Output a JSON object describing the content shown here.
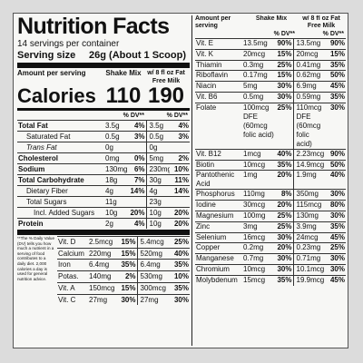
{
  "title": "Nutrition Facts",
  "servings_per_container": "14 servings per container",
  "serving_size": {
    "label": "Serving size",
    "value": "26g (About 1 Scoop)"
  },
  "calories": {
    "amount_per_serving": "Amount per serving",
    "label": "Calories",
    "col1_header": "Shake Mix",
    "col2_header": "w/ 8 fl oz Fat Free Milk",
    "col1_value": "110",
    "col2_value": "190"
  },
  "dv_header": "% DV**",
  "macros": [
    {
      "name": "Total Fat",
      "bold": true,
      "indent": 0,
      "a1": "3.5g",
      "p1": "4%",
      "a2": "3.5g",
      "p2": "4%"
    },
    {
      "name": "Saturated Fat",
      "bold": false,
      "indent": 1,
      "a1": "0.5g",
      "p1": "3%",
      "a2": "0.5g",
      "p2": "3%"
    },
    {
      "name": "Trans Fat",
      "bold": false,
      "italic": true,
      "indent": 1,
      "a1": "0g",
      "p1": "",
      "a2": "0g",
      "p2": ""
    },
    {
      "name": "Cholesterol",
      "bold": true,
      "indent": 0,
      "a1": "0mg",
      "p1": "0%",
      "a2": "5mg",
      "p2": "2%"
    },
    {
      "name": "Sodium",
      "bold": true,
      "indent": 0,
      "a1": "130mg",
      "p1": "6%",
      "a2": "230mg",
      "p2": "10%"
    },
    {
      "name": "Total Carbohydrate",
      "bold": true,
      "indent": 0,
      "a1": "18g",
      "p1": "7%",
      "a2": "30g",
      "p2": "11%"
    },
    {
      "name": "Dietary Fiber",
      "bold": false,
      "indent": 1,
      "a1": "4g",
      "p1": "14%",
      "a2": "4g",
      "p2": "14%"
    },
    {
      "name": "Total Sugars",
      "bold": false,
      "indent": 1,
      "a1": "11g",
      "p1": "",
      "a2": "23g",
      "p2": ""
    },
    {
      "name": "Incl. Added Sugars",
      "bold": false,
      "indent": 2,
      "a1": "10g",
      "p1": "20%",
      "a2": "10g",
      "p2": "20%"
    },
    {
      "name": "Protein",
      "bold": true,
      "indent": 0,
      "a1": "2g",
      "p1": "4%",
      "a2": "10g",
      "p2": "20%"
    }
  ],
  "footnote": "**The % Daily Value (DV) tells you how much a nutrient in a serving of food contributes to a daily diet. 2,000 calories a day is used for general nutrition advice.",
  "vitamins_left": [
    {
      "name": "Vit. D",
      "a1": "2.5mcg",
      "p1": "15%",
      "a2": "5.4mcg",
      "p2": "25%"
    },
    {
      "name": "Calcium",
      "a1": "220mg",
      "p1": "15%",
      "a2": "520mg",
      "p2": "40%"
    },
    {
      "name": "Iron",
      "a1": "6.4mg",
      "p1": "35%",
      "a2": "6.4mg",
      "p2": "35%"
    },
    {
      "name": "Potas.",
      "a1": "140mg",
      "p1": "2%",
      "a2": "530mg",
      "p2": "10%"
    },
    {
      "name": "Vit. A",
      "a1": "150mcg",
      "p1": "15%",
      "a2": "300mcg",
      "p2": "35%"
    },
    {
      "name": "Vit. C",
      "a1": "27mg",
      "p1": "30%",
      "a2": "27mg",
      "p2": "30%"
    }
  ],
  "right": {
    "amount_per_serving": "Amount per serving",
    "col1_header": "Shake Mix",
    "col2_header": "w/ 8 fl oz Fat Free Milk",
    "rows": [
      {
        "name": "Vit. E",
        "a1": "13.5mg",
        "p1": "90%",
        "a2": "13.5mg",
        "p2": "90%"
      },
      {
        "name": "Vit. K",
        "a1": "20mcg",
        "p1": "15%",
        "a2": "20mcg",
        "p2": "15%"
      },
      {
        "name": "Thiamin",
        "a1": "0.3mg",
        "p1": "25%",
        "a2": "0.41mg",
        "p2": "35%"
      },
      {
        "name": "Riboflavin",
        "a1": "0.17mg",
        "p1": "15%",
        "a2": "0.62mg",
        "p2": "50%"
      },
      {
        "name": "Niacin",
        "a1": "5mg",
        "p1": "30%",
        "a2": "6.9mg",
        "p2": "45%"
      },
      {
        "name": "Vit. B6",
        "a1": "0.5mg",
        "p1": "30%",
        "a2": "0.59mg",
        "p2": "35%"
      },
      {
        "name": "Folate",
        "a1": "100mcg DFE (60mcg folic acid)",
        "p1": "25%",
        "a2": "110mcg DFE (60mcg folic acid)",
        "p2": "30%",
        "tall": true
      },
      {
        "name": "Vit. B12",
        "a1": "1mcg",
        "p1": "40%",
        "a2": "2.23mcg",
        "p2": "90%"
      },
      {
        "name": "Biotin",
        "a1": "10mcg",
        "p1": "35%",
        "a2": "14.9mcg",
        "p2": "50%"
      },
      {
        "name": "Pantothenic Acid",
        "a1": "1mg",
        "p1": "20%",
        "a2": "1.9mg",
        "p2": "40%",
        "tall2": true
      },
      {
        "name": "Phosphorus",
        "a1": "110mg",
        "p1": "8%",
        "a2": "350mg",
        "p2": "30%"
      },
      {
        "name": "Iodine",
        "a1": "30mcg",
        "p1": "20%",
        "a2": "115mcg",
        "p2": "80%"
      },
      {
        "name": "Magnesium",
        "a1": "100mg",
        "p1": "25%",
        "a2": "130mg",
        "p2": "30%"
      },
      {
        "name": "Zinc",
        "a1": "3mg",
        "p1": "25%",
        "a2": "3.9mg",
        "p2": "35%"
      },
      {
        "name": "Selenium",
        "a1": "16mcg",
        "p1": "30%",
        "a2": "24mcg",
        "p2": "45%"
      },
      {
        "name": "Copper",
        "a1": "0.2mg",
        "p1": "20%",
        "a2": "0.23mg",
        "p2": "25%"
      },
      {
        "name": "Manganese",
        "a1": "0.7mg",
        "p1": "30%",
        "a2": "0.71mg",
        "p2": "30%"
      },
      {
        "name": "Chromium",
        "a1": "10mcg",
        "p1": "30%",
        "a2": "10.1mcg",
        "p2": "30%"
      },
      {
        "name": "Molybdenum",
        "a1": "15mcg",
        "p1": "35%",
        "a2": "19.9mcg",
        "p2": "45%"
      }
    ]
  }
}
